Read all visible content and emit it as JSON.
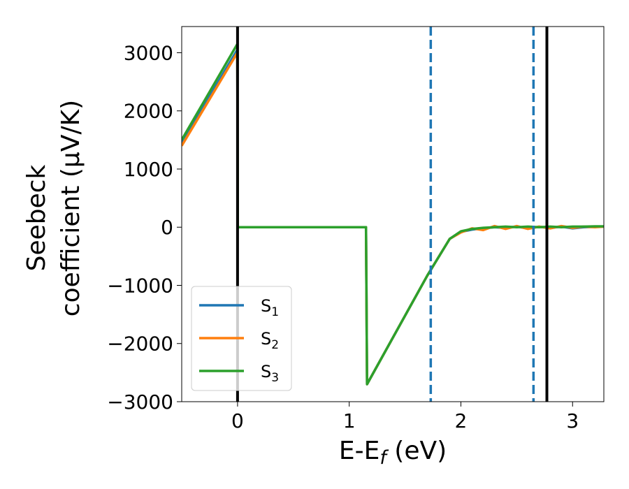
{
  "chart_data": {
    "type": "line",
    "xlabel": "E-E_f (eV)",
    "ylabel_lines": [
      "Seebeck",
      "coefficient (μV/K)"
    ],
    "xlim": [
      -0.5,
      3.28
    ],
    "ylim": [
      -3000,
      3450
    ],
    "xticks": [
      0,
      1,
      2,
      3
    ],
    "yticks": [
      3000,
      2000,
      1000,
      0,
      -1000,
      -2000,
      -3000
    ],
    "ytick_labels": [
      "3000",
      "2000",
      "1000",
      "0",
      "−1000",
      "−2000",
      "−3000"
    ],
    "legend_position": "lower-left",
    "vertical_lines": [
      {
        "x": 0.0,
        "style": "solid",
        "color": "#000000"
      },
      {
        "x": 2.77,
        "style": "solid",
        "color": "#000000"
      },
      {
        "x": 1.73,
        "style": "dashed",
        "color": "#1f77b4"
      },
      {
        "x": 2.65,
        "style": "dashed",
        "color": "#1f77b4"
      }
    ],
    "series": [
      {
        "name": "S1",
        "label_main": "S",
        "label_sub": "1",
        "color": "#1f77b4",
        "x": [
          -0.5,
          -0.002,
          0.002,
          1.15,
          1.16,
          1.7,
          1.9,
          2.0,
          2.1,
          2.2,
          2.3,
          2.4,
          2.5,
          2.6,
          2.7,
          2.8,
          2.9,
          3.0,
          3.1,
          3.2,
          3.28
        ],
        "y": [
          1450,
          3050,
          0,
          0,
          -2700,
          -830,
          -200,
          -80,
          -40,
          -20,
          0,
          -10,
          10,
          -20,
          5,
          -10,
          10,
          -20,
          0,
          5,
          10
        ]
      },
      {
        "name": "S2",
        "label_main": "S",
        "label_sub": "2",
        "color": "#ff7f0e",
        "x": [
          -0.5,
          -0.002,
          0.002,
          1.15,
          1.16,
          1.7,
          1.9,
          2.0,
          2.1,
          2.2,
          2.3,
          2.4,
          2.5,
          2.6,
          2.7,
          2.8,
          2.9,
          3.0,
          3.1,
          3.2,
          3.28
        ],
        "y": [
          1400,
          3000,
          0,
          0,
          -2700,
          -830,
          -200,
          -90,
          -20,
          -50,
          20,
          -30,
          20,
          -30,
          10,
          -20,
          20,
          -10,
          10,
          0,
          10
        ]
      },
      {
        "name": "S3",
        "label_main": "S",
        "label_sub": "3",
        "color": "#2ca02c",
        "x": [
          -0.5,
          -0.002,
          0.002,
          1.15,
          1.16,
          1.7,
          1.9,
          2.0,
          2.1,
          2.2,
          2.3,
          2.4,
          2.5,
          2.6,
          2.7,
          2.8,
          2.9,
          3.0,
          3.1,
          3.2,
          3.28
        ],
        "y": [
          1500,
          3150,
          0,
          0,
          -2700,
          -830,
          -200,
          -70,
          -30,
          -10,
          0,
          10,
          0,
          10,
          0,
          10,
          0,
          10,
          10,
          15,
          15
        ]
      }
    ]
  }
}
